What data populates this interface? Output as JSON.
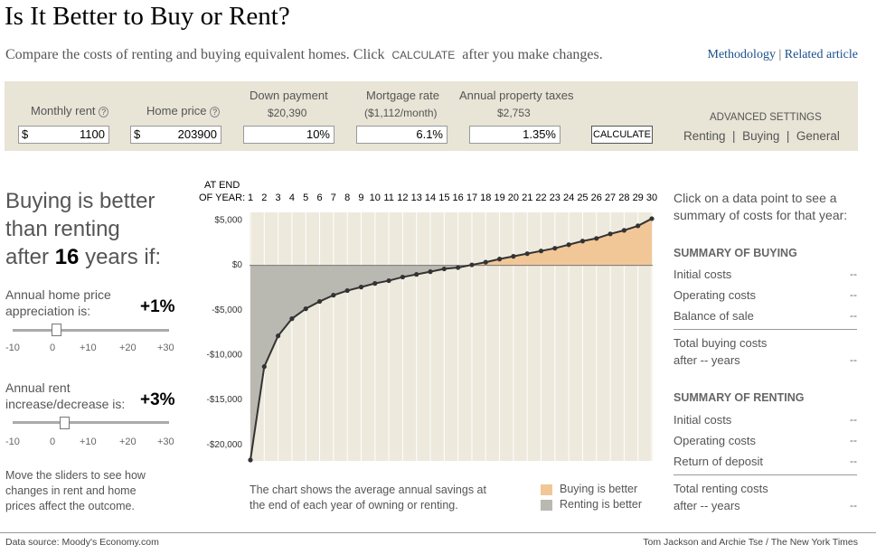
{
  "header": {
    "title": "Is It Better to Buy or Rent?",
    "intro": "Compare the costs of renting and buying equivalent homes. Click",
    "intro_button": "CALCULATE",
    "intro_end": "after you make changes.",
    "links": [
      "Methodology",
      "Related article"
    ]
  },
  "inputs": {
    "fields": [
      {
        "label": "Monthly rent",
        "prefix": "$",
        "value": "1100"
      },
      {
        "label": "Home price",
        "prefix": "$",
        "value": "203900"
      },
      {
        "label": "Down payment",
        "note": "$20,390",
        "value": "10%"
      },
      {
        "label": "Mortgage rate",
        "note": "($1,112/month)",
        "value": "6.1%"
      },
      {
        "label": "Annual property taxes",
        "note": "$2,753",
        "value": "1.35%"
      }
    ],
    "button": "CALCULATE",
    "advanced": {
      "title": "ADVANCED SETTINGS",
      "links": [
        "Renting",
        "Buying",
        "General"
      ]
    }
  },
  "verdict": {
    "line1": "Buying is better",
    "line2": "than renting",
    "pre": "after",
    "years": "16",
    "post": "years if:"
  },
  "sliders": [
    {
      "label": "Annual home price appreciation is:",
      "value": "+1%",
      "ticks": [
        "-10",
        "0",
        "+10",
        "+20",
        "+30"
      ]
    },
    {
      "label": "Annual rent increase/decrease is:",
      "value": "+3%",
      "ticks": [
        "-10",
        "0",
        "+10",
        "+20",
        "+30"
      ]
    }
  ],
  "slider_note": "Move the sliders to see how changes in rent and home prices affect the outcome.",
  "chart_data": {
    "type": "line",
    "x_label": [
      "AT END",
      "OF YEAR:"
    ],
    "x": [
      1,
      2,
      3,
      4,
      5,
      6,
      7,
      8,
      9,
      10,
      11,
      12,
      13,
      14,
      15,
      16,
      17,
      18,
      19,
      20,
      21,
      22,
      23,
      24,
      25,
      26,
      27,
      28,
      29,
      30
    ],
    "values": [
      -21700,
      -11290,
      -7860,
      -5950,
      -4840,
      -4030,
      -3330,
      -2820,
      -2420,
      -2020,
      -1710,
      -1310,
      -1010,
      -710,
      -400,
      -250,
      50,
      350,
      700,
      1000,
      1300,
      1600,
      1900,
      2300,
      2700,
      3000,
      3500,
      3900,
      4400,
      5200
    ],
    "xlim": [
      1,
      30
    ],
    "xticks": [
      1,
      2,
      3,
      4,
      5,
      6,
      7,
      8,
      9,
      10,
      11,
      12,
      13,
      14,
      15,
      16,
      17,
      18,
      19,
      20,
      21,
      22,
      23,
      24,
      25,
      26,
      27,
      28,
      29,
      30
    ],
    "ylim": [
      -21800,
      5900
    ],
    "yticks": [
      {
        "value": 5000,
        "label": "$5,000"
      },
      {
        "value": 0,
        "label": "$0"
      },
      {
        "value": -5000,
        "label": "-$5,000"
      },
      {
        "value": -10000,
        "label": "-$10,000"
      },
      {
        "value": -15000,
        "label": "-$15,000"
      },
      {
        "value": -20000,
        "label": "-$20,000"
      }
    ],
    "grid": "x",
    "color": "#333333",
    "background": "#ede9dc",
    "legend": [
      {
        "label": "Buying is better",
        "color": "#f2c797"
      },
      {
        "label": "Renting is better",
        "color": "#b9b8b1"
      }
    ],
    "caption": "The chart shows the average annual savings at the end of each year of owning or renting."
  },
  "summary": {
    "prompt": "Click on a data point to see a summary of costs for that year:",
    "buying": {
      "title": "SUMMARY OF BUYING",
      "rows": [
        [
          "Initial costs",
          "--"
        ],
        [
          "Operating costs",
          "--"
        ],
        [
          "Balance of sale",
          "--"
        ]
      ],
      "total": [
        "Total buying costs",
        "after -- years",
        "--"
      ]
    },
    "renting": {
      "title": "SUMMARY OF RENTING",
      "rows": [
        [
          "Initial costs",
          "--"
        ],
        [
          "Operating costs",
          "--"
        ],
        [
          "Return of deposit",
          "--"
        ]
      ],
      "total": [
        "Total renting costs",
        "after -- years",
        "--"
      ]
    }
  },
  "footer": {
    "source": "Data source: Moody's Economy.com",
    "credit": "Tom Jackson and Archie Tse / The New York Times"
  }
}
